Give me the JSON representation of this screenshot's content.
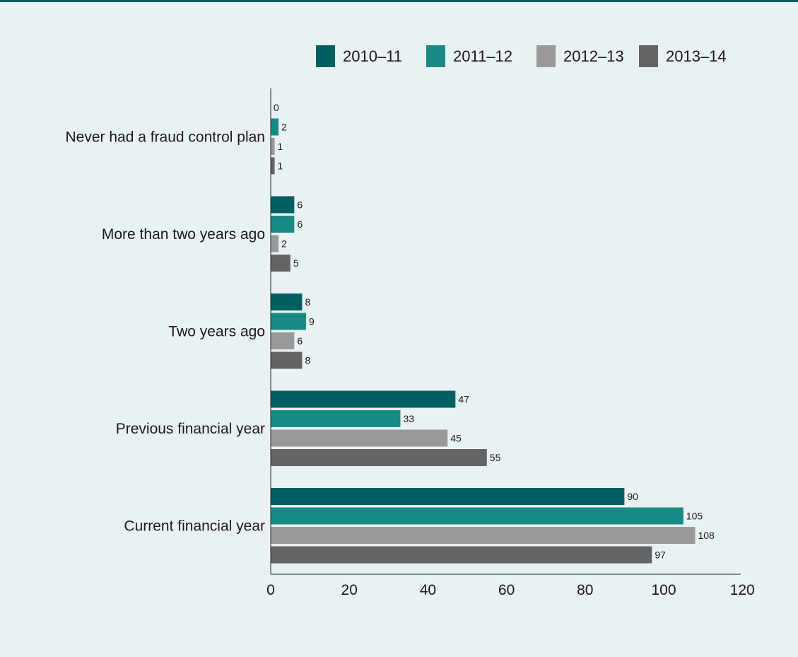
{
  "chart_data": {
    "type": "bar",
    "orientation": "horizontal",
    "title": "",
    "xlabel": "",
    "ylabel": "",
    "categories": [
      "Never had a fraud control plan",
      "More than two years ago",
      "Two years ago",
      "Previous financial year",
      "Current financial year"
    ],
    "series": [
      {
        "name": "2010–11",
        "color": "#005f61",
        "values": [
          0,
          6,
          8,
          47,
          90
        ]
      },
      {
        "name": "2011–12",
        "color": "#198b85",
        "values": [
          2,
          6,
          9,
          33,
          105
        ]
      },
      {
        "name": "2012–13",
        "color": "#98999b",
        "values": [
          1,
          2,
          6,
          45,
          108
        ]
      },
      {
        "name": "2013–14",
        "color": "#636466",
        "values": [
          1,
          5,
          8,
          55,
          97
        ]
      }
    ],
    "xlim": [
      0,
      120
    ],
    "xticks": [
      "0",
      "20",
      "40",
      "60",
      "80",
      "100",
      "120"
    ],
    "grid": false,
    "legend_position": "top-right",
    "top_border_color": "#00605f"
  }
}
